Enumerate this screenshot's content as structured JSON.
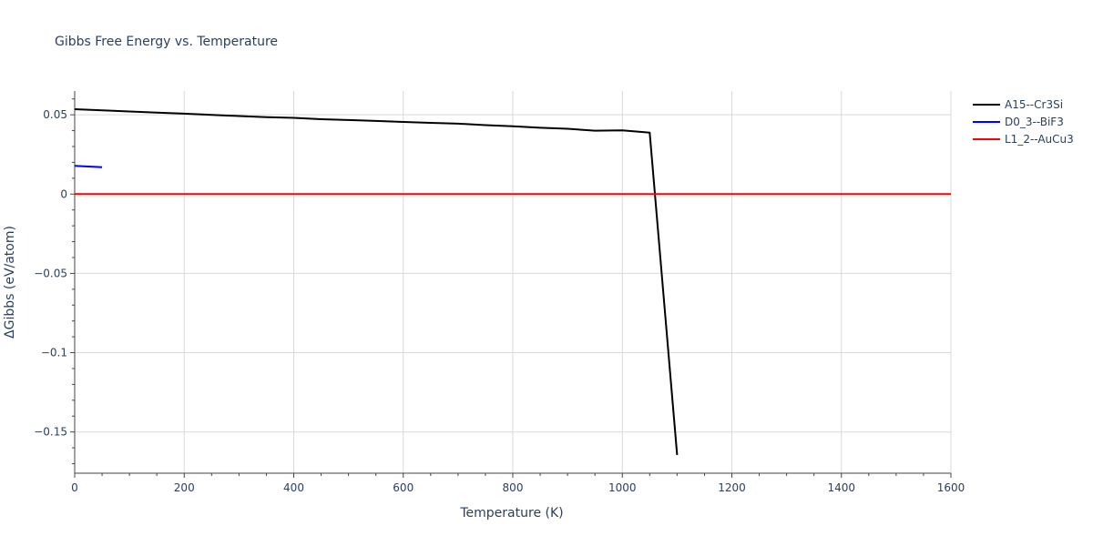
{
  "chart_data": {
    "type": "line",
    "title": "Gibbs Free Energy vs. Temperature",
    "xlabel": "Temperature (K)",
    "ylabel": "ΔGibbs (eV/atom)",
    "xlim": [
      0,
      1600
    ],
    "ylim": [
      -0.176,
      0.065
    ],
    "x_ticks": [
      0,
      200,
      400,
      600,
      800,
      1000,
      1200,
      1400,
      1600
    ],
    "x_tick_labels": [
      "0",
      "200",
      "400",
      "600",
      "800",
      "1000",
      "1200",
      "1400",
      "1600"
    ],
    "y_ticks": [
      0.05,
      0,
      -0.05,
      -0.1,
      -0.15
    ],
    "y_tick_labels": [
      "0.05",
      "0",
      "−0.05",
      "−0.1",
      "−0.15"
    ],
    "grid": true,
    "legend_position": "top-right, outside plot",
    "series": [
      {
        "name": "A15--Cr3Si",
        "color": "#000000",
        "x": [
          0,
          50,
          100,
          150,
          200,
          250,
          300,
          350,
          400,
          450,
          500,
          550,
          600,
          650,
          700,
          750,
          800,
          850,
          900,
          950,
          1000,
          1050,
          1100
        ],
        "y": [
          0.0535,
          0.0528,
          0.0521,
          0.0514,
          0.0507,
          0.0499,
          0.0492,
          0.0485,
          0.0481,
          0.0472,
          0.0467,
          0.0461,
          0.0455,
          0.0449,
          0.0444,
          0.0435,
          0.0428,
          0.0418,
          0.0412,
          0.04,
          0.0402,
          0.0388,
          -0.1645
        ]
      },
      {
        "name": "D0_3--BiF3",
        "color": "#0000ff",
        "x": [
          0,
          50
        ],
        "y": [
          0.0178,
          0.017
        ]
      },
      {
        "name": "L1_2--AuCu3",
        "color": "#ff0000",
        "x": [
          0,
          1600
        ],
        "y": [
          0,
          0
        ]
      }
    ]
  }
}
